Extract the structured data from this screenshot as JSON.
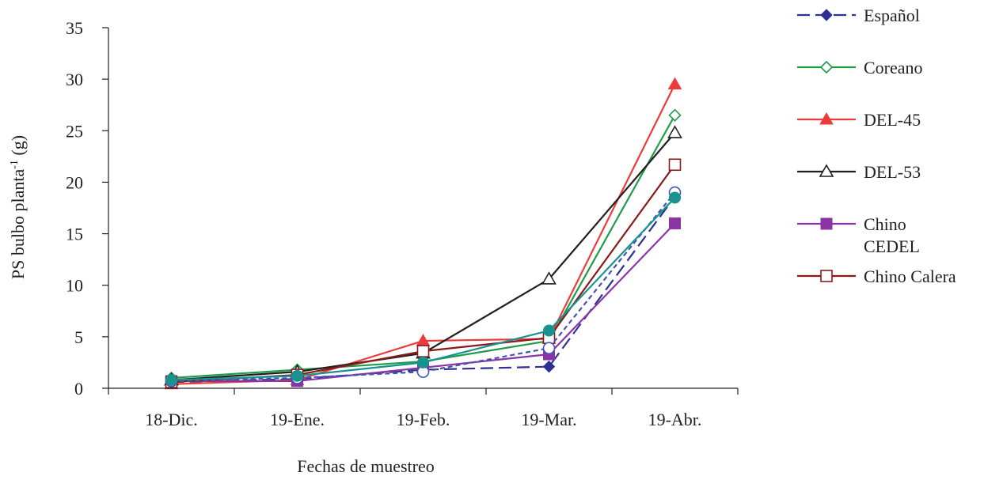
{
  "chart_data": {
    "type": "line",
    "title": "",
    "xlabel": "Fechas de muestreo",
    "ylabel_main": "PS bulbo planta",
    "ylabel_sup": "-1",
    "ylabel_unit": " (g)",
    "categories": [
      "18-Dic.",
      "19-Ene.",
      "19-Feb.",
      "19-Mar.",
      "19-Abr."
    ],
    "ylim": [
      0,
      35
    ],
    "yticks": [
      0,
      5,
      10,
      15,
      20,
      25,
      30,
      35
    ],
    "grid": false,
    "legend_position": "right",
    "series": [
      {
        "name": "Español",
        "label_lines": [
          "Español"
        ],
        "values": [
          0.6,
          0.9,
          1.8,
          2.1,
          18.6
        ],
        "color": "#2e3192",
        "dash": "dashed",
        "marker": "diamond-filled"
      },
      {
        "name": "Coreano",
        "label_lines": [
          "Coreano"
        ],
        "values": [
          1.0,
          1.8,
          2.6,
          4.6,
          26.5
        ],
        "color": "#1f9c4a",
        "dash": "solid",
        "marker": "diamond-open"
      },
      {
        "name": "DEL-45",
        "label_lines": [
          "DEL-45"
        ],
        "values": [
          0.4,
          0.8,
          4.6,
          4.8,
          29.5
        ],
        "color": "#ed3b3b",
        "dash": "solid",
        "marker": "triangle-filled"
      },
      {
        "name": "DEL-53",
        "label_lines": [
          "DEL-53"
        ],
        "values": [
          0.8,
          1.6,
          3.4,
          10.6,
          24.8
        ],
        "color": "#231f20",
        "dash": "solid",
        "marker": "triangle-open"
      },
      {
        "name": "Chino CEDEL",
        "label_lines": [
          "Chino",
          "CEDEL"
        ],
        "values": [
          0.7,
          0.7,
          2.0,
          3.3,
          16.0
        ],
        "color": "#8b34a5",
        "dash": "solid",
        "marker": "square-filled"
      },
      {
        "name": "Chino Calera",
        "label_lines": [
          "Chino Calera"
        ],
        "values": [
          0.6,
          1.3,
          3.6,
          4.9,
          21.7
        ],
        "color": "#8a1a1a",
        "dash": "solid",
        "marker": "square-open"
      },
      {
        "name": "",
        "label_lines": [],
        "values": [
          0.7,
          1.0,
          1.6,
          3.9,
          19.0
        ],
        "color": "#4455b0",
        "dash": "short-dash",
        "marker": "circle-open"
      },
      {
        "name": "",
        "label_lines": [],
        "values": [
          0.8,
          1.2,
          2.5,
          5.6,
          18.5
        ],
        "color": "#18938f",
        "dash": "solid",
        "marker": "circle-filled"
      }
    ]
  }
}
